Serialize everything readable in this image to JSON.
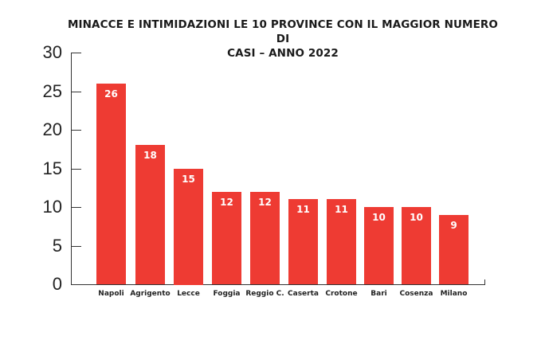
{
  "title": {
    "line1": "MINACCE E INTIMIDAZIONI LE 10 PROVINCE CON IL MAGGIOR NUMERO DI",
    "line2": "CASI – ANNO 2022"
  },
  "colors": {
    "bar": "#ee3b33",
    "axis": "#333333",
    "bar_label": "#ffffff"
  },
  "y_ticks": [
    "30",
    "25",
    "20",
    "15",
    "10",
    "5",
    "0"
  ],
  "chart_data": {
    "type": "bar",
    "title": "MINACCE E INTIMIDAZIONI LE 10 PROVINCE CON IL MAGGIOR NUMERO DI CASI – ANNO 2022",
    "categories": [
      "Napoli",
      "Agrigento",
      "Lecce",
      "Foggia",
      "Reggio C.",
      "Caserta",
      "Crotone",
      "Bari",
      "Cosenza",
      "Milano"
    ],
    "values": [
      26,
      18,
      15,
      12,
      12,
      11,
      11,
      10,
      10,
      9
    ],
    "xlabel": "",
    "ylabel": "",
    "ylim": [
      0,
      30
    ],
    "yticks": [
      0,
      5,
      10,
      15,
      20,
      25,
      30
    ],
    "grid": false,
    "legend": null,
    "data_labels": true
  }
}
